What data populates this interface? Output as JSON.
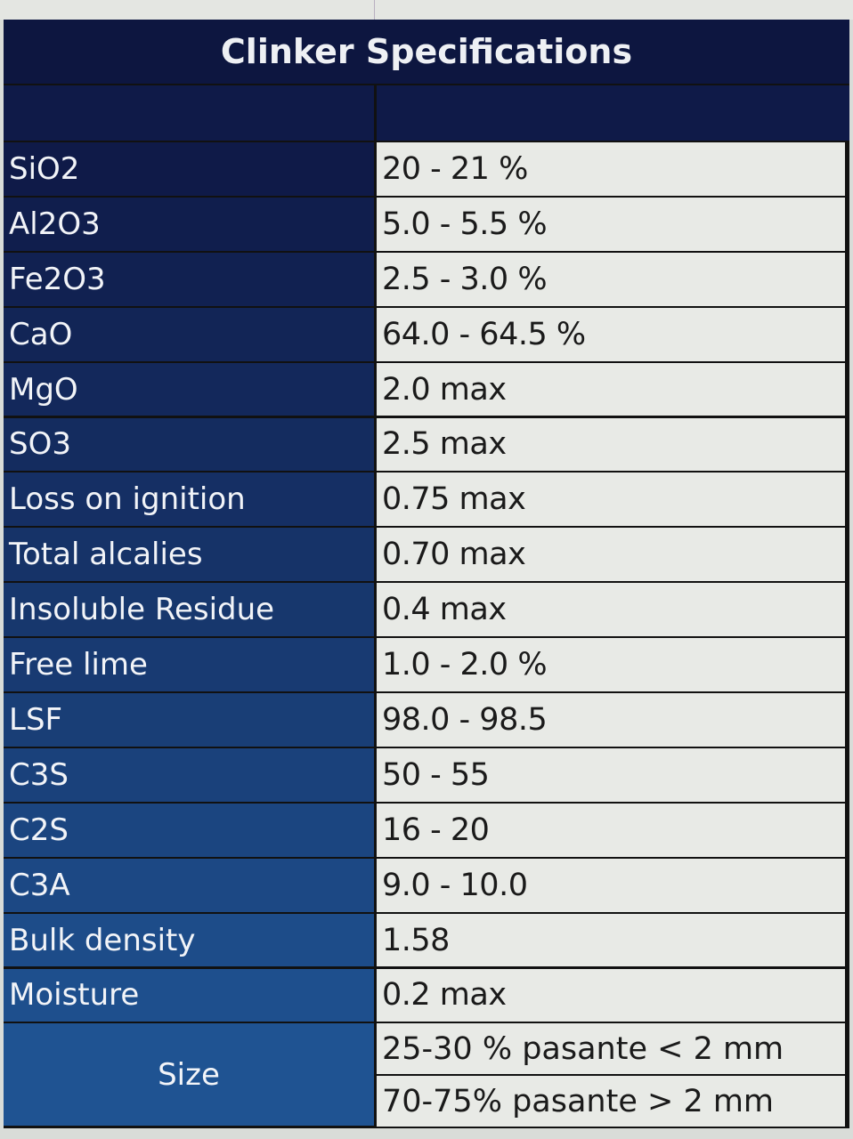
{
  "title": "Clinker Specifications",
  "rows": [
    {
      "label": "SiO2",
      "value": "20 - 21 %"
    },
    {
      "label": "Al2O3",
      "value": "5.0 - 5.5 %"
    },
    {
      "label": "Fe2O3",
      "value": "2.5 - 3.0 %"
    },
    {
      "label": "CaO",
      "value": "64.0 - 64.5 %"
    },
    {
      "label": "MgO",
      "value": "2.0 max"
    },
    {
      "label": "SO3",
      "value": "2.5 max"
    },
    {
      "label": "Loss on ignition",
      "value": "0.75 max"
    },
    {
      "label": "Total alcalies",
      "value": "0.70 max"
    },
    {
      "label": "Insoluble Residue",
      "value": "0.4 max"
    },
    {
      "label": "Free lime",
      "value": "1.0 - 2.0 %"
    },
    {
      "label": "LSF",
      "value": "98.0 - 98.5"
    },
    {
      "label": "C3S",
      "value": "50 - 55"
    },
    {
      "label": "C2S",
      "value": "16 - 20"
    },
    {
      "label": "C3A",
      "value": "9.0 - 10.0"
    },
    {
      "label": "Bulk density",
      "value": "1.58"
    },
    {
      "label": "Moisture",
      "value": "0.2 max"
    }
  ],
  "size": {
    "label": "Size",
    "values": [
      "25-30 % pasante < 2 mm",
      "70-75% pasante > 2 mm"
    ]
  },
  "colors": {
    "header_bg": "#0d1640",
    "label_bg_top": "#0f1a48",
    "label_bg_bottom": "#1f5392",
    "value_bg": "#e8eae6"
  }
}
